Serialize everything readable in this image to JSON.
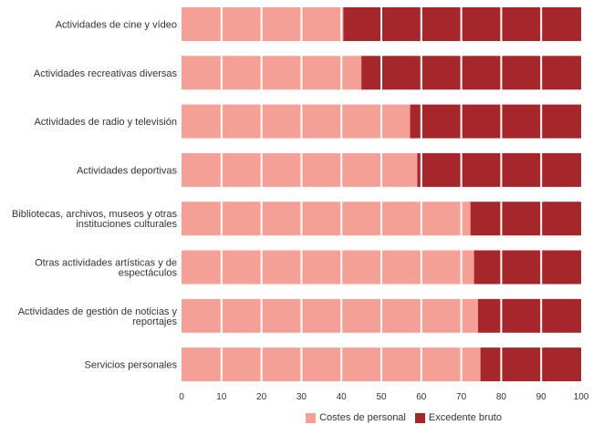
{
  "chart_data": {
    "type": "bar",
    "orientation": "horizontal",
    "stacked": true,
    "categories": [
      [
        "Actividades de cine y vídeo"
      ],
      [
        "Actividades recreativas diversas"
      ],
      [
        "Actividades de radio y televisión"
      ],
      [
        "Actividades deportivas"
      ],
      [
        "Bibliotecas, archivos, museos y otras",
        "instituciones culturales"
      ],
      [
        "Otras actividades artísticas y de",
        "espectáculos"
      ],
      [
        "Actividades de gestión de noticias y",
        "reportajes"
      ],
      [
        "Servicios personales"
      ]
    ],
    "series": [
      {
        "name": "Costes de personal",
        "color": "#f4a097",
        "values": [
          40.5,
          45.0,
          57.2,
          59.0,
          72.3,
          73.2,
          74.2,
          74.8
        ]
      },
      {
        "name": "Excedente bruto",
        "color": "#a5262b",
        "values": [
          59.5,
          55.0,
          42.8,
          41.0,
          27.7,
          26.8,
          25.8,
          25.2
        ]
      }
    ],
    "xlim": [
      0,
      100
    ],
    "xticks": [
      "0",
      "10",
      "20",
      "30",
      "40",
      "50",
      "60",
      "70",
      "80",
      "90",
      "100"
    ],
    "grid": "vertical white lines",
    "legend_position": "bottom"
  }
}
